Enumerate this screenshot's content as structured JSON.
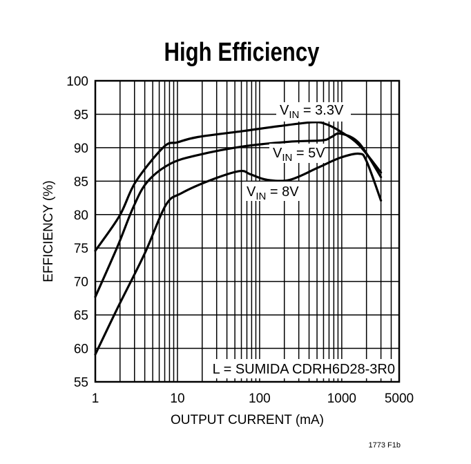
{
  "chart_data": {
    "type": "line",
    "title": "High Efficiency",
    "xlabel": "OUTPUT CURRENT (mA)",
    "ylabel": "EFFICIENCY (%)",
    "x_scale": "log",
    "xlim": [
      1,
      5000
    ],
    "ylim": [
      55,
      100
    ],
    "grid": true,
    "x_tick_labels": [
      "1",
      "10",
      "100",
      "1000",
      "5000"
    ],
    "x_tick_values": [
      1,
      10,
      100,
      1000,
      5000
    ],
    "y_tick_labels": [
      "55",
      "60",
      "65",
      "70",
      "75",
      "80",
      "85",
      "90",
      "95",
      "100"
    ],
    "y_tick_values": [
      55,
      60,
      65,
      70,
      75,
      80,
      85,
      90,
      95,
      100
    ],
    "series": [
      {
        "name": "VIN = 3.3V",
        "label_main": "V",
        "label_sub": "IN",
        "label_rest": " = 3.3V",
        "x": [
          1,
          1.97,
          3.1,
          6.8,
          10,
          17.8,
          64,
          167,
          444,
          650,
          1000,
          1620,
          3000
        ],
        "y": [
          74.6,
          79.8,
          84.9,
          90.1,
          90.8,
          91.6,
          92.5,
          93.2,
          93.8,
          93.5,
          92.3,
          90.4,
          86.3
        ]
      },
      {
        "name": "VIN = 5V",
        "label_main": "V",
        "label_sub": "IN",
        "label_rest": " = 5V",
        "x": [
          1,
          1.86,
          2.9,
          4.3,
          8.2,
          17.8,
          64,
          234,
          580,
          750,
          960,
          1620,
          3000
        ],
        "y": [
          67.7,
          75.2,
          81.1,
          84.9,
          87.6,
          88.9,
          90.2,
          90.9,
          91.1,
          91.6,
          92.1,
          90.7,
          85.6
        ]
      },
      {
        "name": "VIN = 8V",
        "label_main": "V",
        "label_sub": "IN",
        "label_rest": " = 8V",
        "x": [
          1,
          1.86,
          4.0,
          7.2,
          11.2,
          26,
          57,
          78,
          123,
          234,
          510,
          960,
          1620,
          2000,
          3000
        ],
        "y": [
          59.1,
          66.0,
          74.2,
          81.4,
          83.2,
          85.2,
          86.5,
          86.0,
          85.2,
          85.2,
          87.0,
          88.5,
          89.1,
          88.0,
          82.1
        ]
      }
    ],
    "annotations": [
      "L = SUMIDA CDRH6D28-3R0"
    ],
    "line_color": "#000000"
  },
  "footer": "1773 F1b"
}
